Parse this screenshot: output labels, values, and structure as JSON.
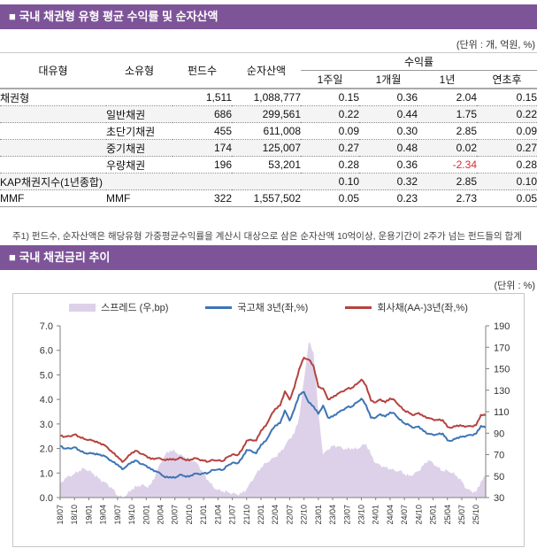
{
  "section1": {
    "title": "■ 국내 채권형 유형 평균 수익률 및 순자산액",
    "unit_note": "(단위 : 개, 억원, %)",
    "table": {
      "headers": {
        "major": "대유형",
        "minor": "소유형",
        "fund_count": "펀드수",
        "nav": "순자산액",
        "yield_group": "수익률",
        "sub": [
          "1주일",
          "1개월",
          "1년",
          "연초후"
        ]
      },
      "rows": [
        {
          "maj": "채권형",
          "sub": "",
          "funds": "1,511",
          "nav": "1,088,777",
          "y1": "0.15",
          "y2": "0.36",
          "y3": "2.04",
          "y4": "0.15"
        },
        {
          "maj": "",
          "sub": "일반채권",
          "funds": "686",
          "nav": "299,561",
          "y1": "0.22",
          "y2": "0.44",
          "y3": "1.75",
          "y4": "0.22"
        },
        {
          "maj": "",
          "sub": "초단기채권",
          "funds": "455",
          "nav": "611,008",
          "y1": "0.09",
          "y2": "0.30",
          "y3": "2.85",
          "y4": "0.09"
        },
        {
          "maj": "",
          "sub": "중기채권",
          "funds": "174",
          "nav": "125,007",
          "y1": "0.27",
          "y2": "0.48",
          "y3": "0.02",
          "y4": "0.27"
        },
        {
          "maj": "",
          "sub": "우량채권",
          "funds": "196",
          "nav": "53,201",
          "y1": "0.28",
          "y2": "0.36",
          "y3": "-2.34",
          "y4": "0.28"
        },
        {
          "maj": "KAP채권지수(1년종합)",
          "sub": "",
          "funds": "",
          "nav": "",
          "y1": "0.10",
          "y2": "0.32",
          "y3": "2.85",
          "y4": "0.10"
        },
        {
          "maj": "MMF",
          "sub": "MMF",
          "funds": "322",
          "nav": "1,557,502",
          "y1": "0.05",
          "y2": "0.23",
          "y3": "2.73",
          "y4": "0.05"
        }
      ]
    },
    "footnote": "주1) 펀드수, 순자산액은 해당유형 가중평균수익률을 계산시 대상으로 삼은 순자산액 10억이상, 운용기간이 2주가 넘는 펀드들의 합계",
    "negative_color": "#E02A2A",
    "bar_color": "#7E5499"
  },
  "section2": {
    "title": "■ 국내 채권금리 추이",
    "unit_note": "(단위 : %)"
  },
  "chart_data": {
    "type": "line",
    "title": "국내 채권금리 추이",
    "x_start": "2018-07",
    "x_end": "2025-12",
    "x_frequency": "monthly",
    "x_tick_every": 3,
    "x_tick_labels": [
      "18/07",
      "18/10",
      "19/01",
      "19/04",
      "19/07",
      "19/10",
      "20/01",
      "20/04",
      "20/07",
      "20/10",
      "21/01",
      "21/04",
      "21/07",
      "21/10",
      "22/01",
      "22/04",
      "22/07",
      "22/10",
      "23/01",
      "23/04",
      "23/07",
      "23/10",
      "24/01",
      "24/04",
      "24/07",
      "24/10",
      "25/01",
      "25/04",
      "25/07",
      "25/10"
    ],
    "left_axis": {
      "min": 0.0,
      "max": 7.0,
      "step": 1.0,
      "labels": [
        "0.0",
        "1.0",
        "2.0",
        "3.0",
        "4.0",
        "5.0",
        "6.0",
        "7.0"
      ]
    },
    "right_axis": {
      "min": 30,
      "max": 190,
      "step": 20,
      "labels": [
        "30",
        "50",
        "70",
        "90",
        "110",
        "130",
        "150",
        "170",
        "190"
      ]
    },
    "grid": false,
    "legend_position": "top",
    "series": [
      {
        "name": "스프레드 (우,bp)",
        "type": "area",
        "axis": "right",
        "color": "#DDD1E9",
        "values": [
          42,
          48,
          50,
          52,
          55,
          57,
          55,
          52,
          48,
          45,
          42,
          38,
          32,
          30,
          33,
          38,
          40,
          42,
          40,
          42,
          52,
          62,
          70,
          74,
          73,
          70,
          68,
          66,
          64,
          60,
          52,
          46,
          40,
          37,
          36,
          35,
          34,
          33,
          34,
          38,
          45,
          52,
          58,
          62,
          65,
          68,
          72,
          78,
          85,
          90,
          105,
          140,
          175,
          165,
          110,
          70,
          75,
          78,
          78,
          76,
          75,
          76,
          75,
          78,
          80,
          70,
          62,
          60,
          58,
          57,
          55,
          55,
          52,
          50,
          52,
          55,
          60,
          65,
          62,
          58,
          55,
          55,
          53,
          50,
          45,
          38,
          36,
          35,
          45,
          50
        ]
      },
      {
        "name": "국고채 3년(좌,%)",
        "type": "line",
        "axis": "left",
        "color": "#3D74B5",
        "values": [
          2.1,
          2.0,
          2.0,
          2.05,
          1.93,
          1.82,
          1.8,
          1.8,
          1.75,
          1.72,
          1.6,
          1.45,
          1.35,
          1.15,
          1.3,
          1.45,
          1.5,
          1.36,
          1.3,
          1.15,
          1.08,
          0.97,
          0.82,
          0.84,
          0.8,
          0.93,
          0.88,
          0.85,
          0.97,
          0.96,
          0.98,
          1.01,
          1.13,
          1.14,
          1.13,
          1.3,
          1.42,
          1.39,
          1.59,
          1.94,
          1.9,
          1.8,
          2.15,
          2.3,
          2.66,
          2.94,
          3.03,
          3.55,
          3.14,
          3.6,
          4.19,
          4.3,
          3.87,
          3.72,
          3.41,
          3.75,
          3.26,
          3.3,
          3.45,
          3.56,
          3.68,
          3.71,
          3.87,
          4.03,
          3.76,
          3.25,
          3.26,
          3.4,
          3.3,
          3.47,
          3.41,
          3.18,
          3.03,
          2.95,
          2.84,
          2.9,
          2.71,
          2.6,
          2.56,
          2.58,
          2.61,
          2.33,
          2.32,
          2.44,
          2.47,
          2.52,
          2.55,
          2.6,
          2.92,
          2.85
        ]
      },
      {
        "name": "회사채(AA-)3년(좌,%)",
        "type": "line",
        "axis": "left",
        "color": "#B5423F",
        "values": [
          2.52,
          2.48,
          2.5,
          2.57,
          2.48,
          2.39,
          2.35,
          2.32,
          2.23,
          2.17,
          2.02,
          1.83,
          1.67,
          1.45,
          1.63,
          1.83,
          1.9,
          1.78,
          1.7,
          1.57,
          1.6,
          1.59,
          1.52,
          1.58,
          1.53,
          1.63,
          1.56,
          1.51,
          1.61,
          1.56,
          1.5,
          1.47,
          1.53,
          1.51,
          1.49,
          1.65,
          1.76,
          1.72,
          1.93,
          2.32,
          2.35,
          2.32,
          2.73,
          2.92,
          3.31,
          3.62,
          3.75,
          4.33,
          3.99,
          4.5,
          5.24,
          5.7,
          5.62,
          5.37,
          4.51,
          4.45,
          4.01,
          4.08,
          4.23,
          4.32,
          4.43,
          4.47,
          4.62,
          4.81,
          4.56,
          3.95,
          3.88,
          4.0,
          3.88,
          4.04,
          3.96,
          3.73,
          3.55,
          3.45,
          3.36,
          3.45,
          3.31,
          3.25,
          3.18,
          3.16,
          3.16,
          2.88,
          2.85,
          2.94,
          2.92,
          2.9,
          2.91,
          2.95,
          3.37,
          3.35
        ]
      }
    ]
  }
}
